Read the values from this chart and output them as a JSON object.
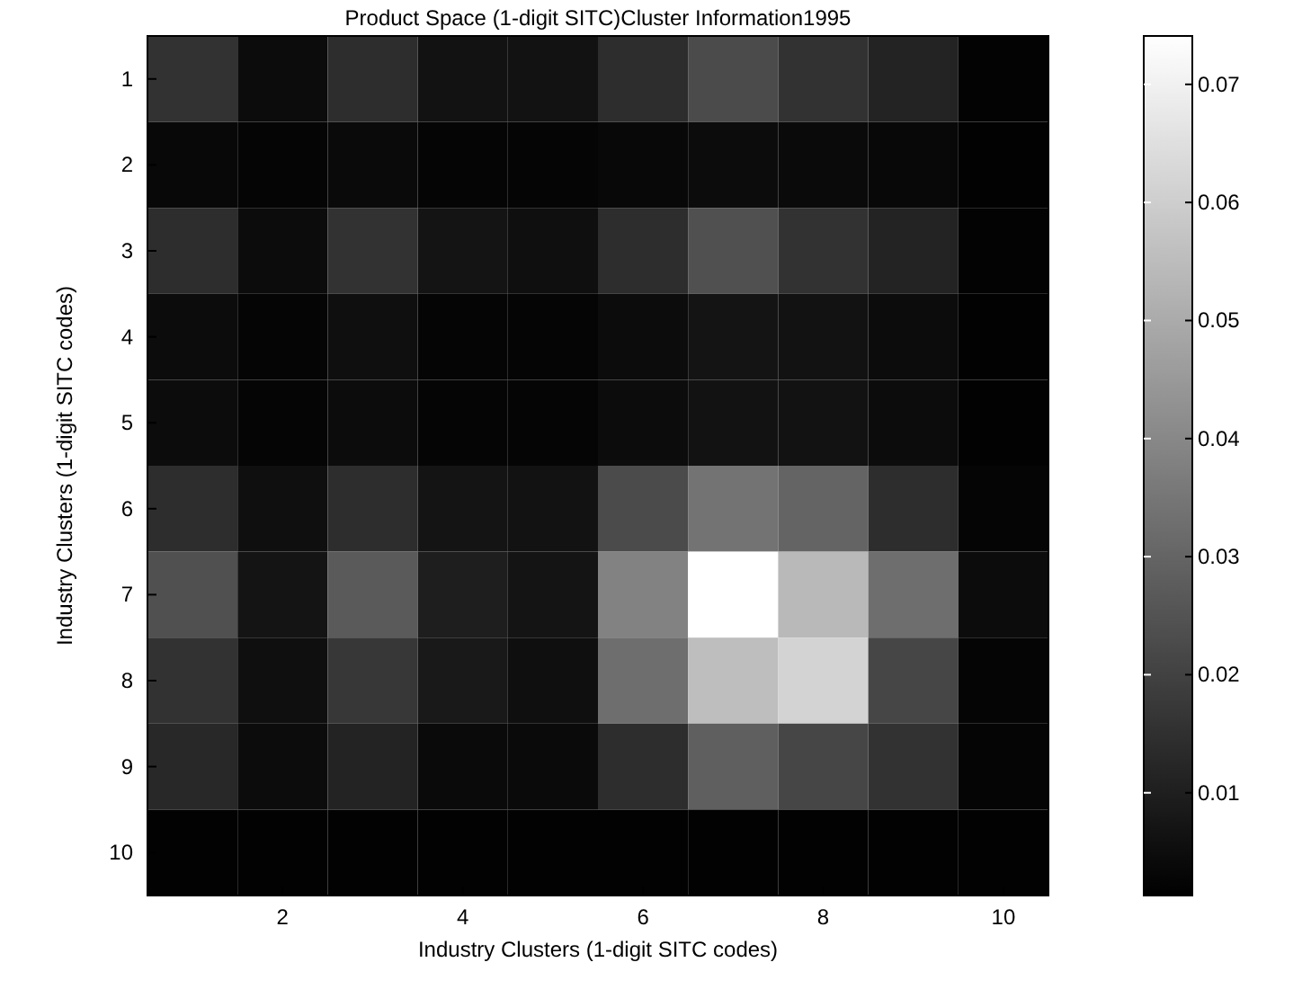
{
  "chart_data": {
    "type": "heatmap",
    "title": "Product Space (1-digit SITC)Cluster Information1995",
    "xlabel": "Industry Clusters (1-digit SITC codes)",
    "ylabel": "Industry Clusters (1-digit SITC codes)",
    "categories": [
      null,
      "2",
      null,
      "4",
      null,
      "6",
      null,
      "8",
      null,
      "10"
    ],
    "y_categories": [
      "1",
      "2",
      "3",
      "4",
      "5",
      "6",
      "7",
      "8",
      "9",
      "10"
    ],
    "cells": [
      [
        0.0156,
        0.0047,
        0.0142,
        0.0064,
        0.0064,
        0.0142,
        0.0228,
        0.0156,
        0.0113,
        0.0022
      ],
      [
        0.0036,
        0.0027,
        0.0042,
        0.0027,
        0.0027,
        0.0036,
        0.0047,
        0.0042,
        0.0036,
        0.0019
      ],
      [
        0.0142,
        0.0047,
        0.0156,
        0.007,
        0.0056,
        0.0142,
        0.0242,
        0.0156,
        0.0113,
        0.0022
      ],
      [
        0.0047,
        0.0027,
        0.0056,
        0.0027,
        0.0027,
        0.0047,
        0.007,
        0.0064,
        0.0047,
        0.0019
      ],
      [
        0.0047,
        0.0027,
        0.0047,
        0.0027,
        0.0027,
        0.0047,
        0.0064,
        0.0064,
        0.0047,
        0.0019
      ],
      [
        0.0142,
        0.0056,
        0.0142,
        0.007,
        0.0064,
        0.0228,
        0.0342,
        0.0299,
        0.0142,
        0.0027
      ],
      [
        0.0242,
        0.007,
        0.027,
        0.0099,
        0.007,
        0.0385,
        0.0741,
        0.0542,
        0.0328,
        0.0047
      ],
      [
        0.0156,
        0.0056,
        0.017,
        0.0085,
        0.0056,
        0.0328,
        0.0556,
        0.0614,
        0.0213,
        0.0027
      ],
      [
        0.0127,
        0.0047,
        0.0113,
        0.0042,
        0.0042,
        0.0142,
        0.0285,
        0.0213,
        0.0156,
        0.0027
      ],
      [
        0.0019,
        0.0019,
        0.0019,
        0.0019,
        0.0019,
        0.0019,
        0.0019,
        0.0019,
        0.0019,
        0.0019
      ]
    ],
    "clim": [
      0.0013,
      0.0741
    ],
    "cticks": [
      0.01,
      0.02,
      0.03,
      0.04,
      0.05,
      0.06,
      0.07
    ]
  }
}
